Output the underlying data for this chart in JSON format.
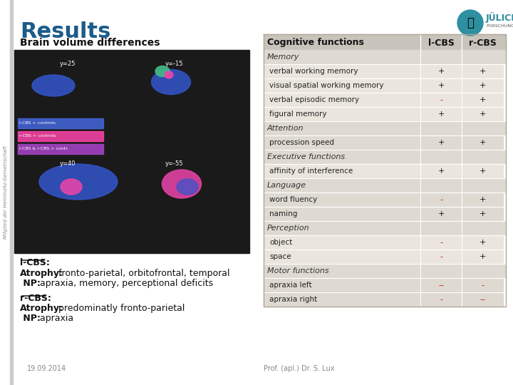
{
  "title": "Results",
  "bg_color": "#f5f5f0",
  "white_bg": "#ffffff",
  "slide_bg": "#f0ede8",
  "left_panel_title": "Brain volume differences",
  "table_header": [
    "Cognitive functions",
    "l-CBS",
    "r-CBS"
  ],
  "categories": [
    {
      "name": "Memory",
      "is_header": true,
      "l_cbs": "",
      "r_cbs": ""
    },
    {
      "name": "verbal working memory",
      "is_header": false,
      "l_cbs": "+",
      "r_cbs": "+"
    },
    {
      "name": "visual spatial working memory",
      "is_header": false,
      "l_cbs": "+",
      "r_cbs": "+"
    },
    {
      "name": "verbal episodic memory",
      "is_header": false,
      "l_cbs": "-",
      "r_cbs": "+"
    },
    {
      "name": "figural memory",
      "is_header": false,
      "l_cbs": "+",
      "r_cbs": "+"
    },
    {
      "name": "Attention",
      "is_header": true,
      "l_cbs": "",
      "r_cbs": ""
    },
    {
      "name": "procession speed",
      "is_header": false,
      "l_cbs": "+",
      "r_cbs": "+"
    },
    {
      "name": "Executive functions",
      "is_header": true,
      "l_cbs": "",
      "r_cbs": ""
    },
    {
      "name": "affinity of interference",
      "is_header": false,
      "l_cbs": "+",
      "r_cbs": "+"
    },
    {
      "name": "Language",
      "is_header": true,
      "l_cbs": "",
      "r_cbs": ""
    },
    {
      "name": "word fluency",
      "is_header": false,
      "l_cbs": "-",
      "r_cbs": "+"
    },
    {
      "name": "naming",
      "is_header": false,
      "l_cbs": "+",
      "r_cbs": "+"
    },
    {
      "name": "Perception",
      "is_header": true,
      "l_cbs": "",
      "r_cbs": ""
    },
    {
      "name": "object",
      "is_header": false,
      "l_cbs": "-",
      "r_cbs": "+"
    },
    {
      "name": "space",
      "is_header": false,
      "l_cbs": "-",
      "r_cbs": "+"
    },
    {
      "name": "Motor functions",
      "is_header": true,
      "l_cbs": "",
      "r_cbs": ""
    },
    {
      "name": "apraxia left",
      "is_header": false,
      "l_cbs": "--",
      "r_cbs": "-"
    },
    {
      "name": "apraxia right",
      "is_header": false,
      "l_cbs": "-",
      "r_cbs": "--"
    }
  ],
  "lcbs_text": [
    {
      "label": "l-CBS:",
      "underline": true
    },
    {
      "label": "Atrophy:",
      "bold": true,
      "suffix": " fronto-parietal, orbitofrontal, temporal"
    },
    {
      "label": "NP:",
      "bold": true,
      "suffix": " apraxia, memory, perceptional deficits"
    }
  ],
  "rcbs_text": [
    {
      "label": "r-CBS:",
      "underline": true
    },
    {
      "label": "Atrophy:",
      "bold": true,
      "suffix": " predominatly fronto-parietal"
    },
    {
      "label": "NP:",
      "bold": true,
      "suffix": " apraxia"
    }
  ],
  "date": "19.09.2014",
  "author": "Prof. (apl.) Dr. S. Lux",
  "vertical_label": "Mitglied der Helmholtz-Gemeinschaft",
  "header_color": "#2e7fa0",
  "header_bg": "#d8d4cc",
  "row_bg_light": "#eae6de",
  "row_bg_dark": "#d8d4cc",
  "plus_color": "#000000",
  "minus_color": "#cc0000",
  "double_minus_color": "#cc0000",
  "title_color": "#1a5276",
  "table_border_color": "#b0a898"
}
